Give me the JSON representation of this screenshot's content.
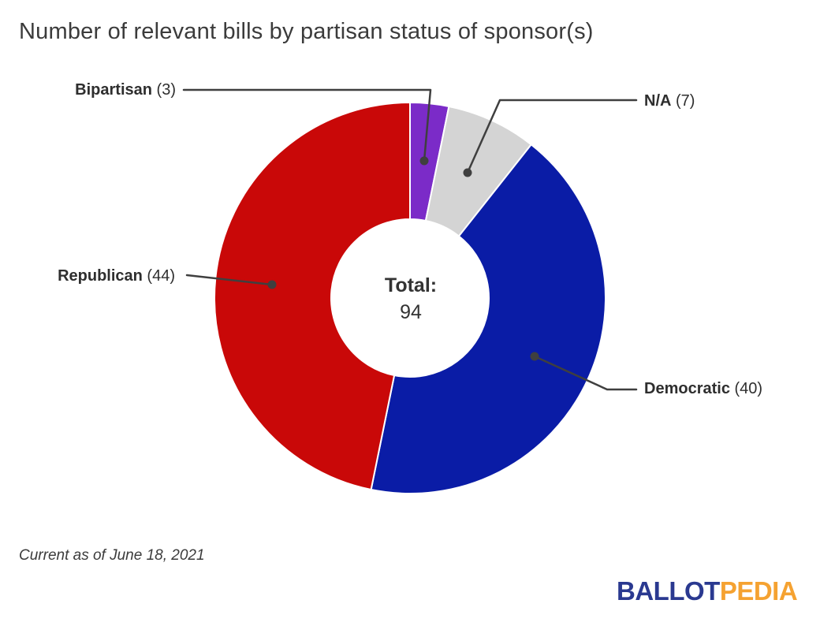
{
  "title": "Number of relevant bills by partisan status of sponsor(s)",
  "footnote": "Current as of June 18, 2021",
  "logo": {
    "part1": "BALLOT",
    "part2": "PEDIA"
  },
  "center": {
    "label": "Total:",
    "value": "94"
  },
  "chart_data": {
    "type": "pie",
    "subtype": "donut",
    "title": "Number of relevant bills by partisan status of sponsor(s)",
    "total": 94,
    "start_angle_deg": 0,
    "direction": "clockwise",
    "center_label": "Total:",
    "center_value": 94,
    "legend_position": "callout-labels",
    "slices": [
      {
        "label": "Bipartisan",
        "value": 3,
        "count_display": "(3)",
        "color": "#7b2bc8"
      },
      {
        "label": "N/A",
        "value": 7,
        "count_display": "(7)",
        "color": "#d4d4d4"
      },
      {
        "label": "Democratic",
        "value": 40,
        "count_display": "(40)",
        "color": "#0a1ca6"
      },
      {
        "label": "Republican",
        "value": 44,
        "count_display": "(44)",
        "color": "#c90808"
      }
    ]
  },
  "colors": {
    "bipartisan": "#7b2bc8",
    "na": "#d4d4d4",
    "democratic": "#0a1ca6",
    "republican": "#c90808",
    "leader_line": "#3f3f3f",
    "title_text": "#3b3b3b",
    "logo_blue": "#2a3990",
    "logo_orange": "#f5a231"
  }
}
